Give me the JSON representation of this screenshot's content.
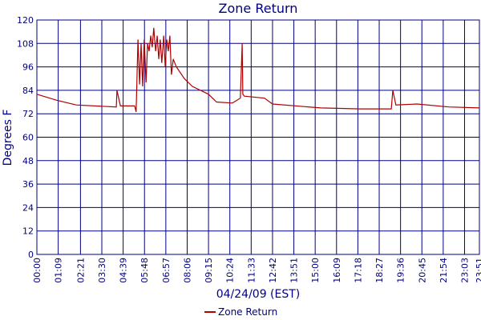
{
  "chart_data": {
    "type": "line",
    "title": "Zone Return",
    "x_label": "04/24/09 (EST)",
    "y_label": "Degrees F",
    "xlim": [
      0,
      1431
    ],
    "ylim": [
      0,
      120
    ],
    "yticks": [
      0,
      12,
      24,
      36,
      48,
      60,
      72,
      84,
      96,
      108,
      120
    ],
    "xticks": [
      {
        "value": 0,
        "label": "00:00"
      },
      {
        "value": 69,
        "label": "01:09"
      },
      {
        "value": 141,
        "label": "02:21"
      },
      {
        "value": 210,
        "label": "03:30"
      },
      {
        "value": 279,
        "label": "04:39"
      },
      {
        "value": 348,
        "label": "05:48"
      },
      {
        "value": 417,
        "label": "06:57"
      },
      {
        "value": 486,
        "label": "08:06"
      },
      {
        "value": 555,
        "label": "09:15"
      },
      {
        "value": 624,
        "label": "10:24"
      },
      {
        "value": 693,
        "label": "11:33"
      },
      {
        "value": 762,
        "label": "12:42"
      },
      {
        "value": 831,
        "label": "13:51"
      },
      {
        "value": 900,
        "label": "15:00"
      },
      {
        "value": 969,
        "label": "16:09"
      },
      {
        "value": 1038,
        "label": "17:18"
      },
      {
        "value": 1107,
        "label": "18:27"
      },
      {
        "value": 1176,
        "label": "19:36"
      },
      {
        "value": 1245,
        "label": "20:45"
      },
      {
        "value": 1314,
        "label": "21:54"
      },
      {
        "value": 1383,
        "label": "23:03"
      },
      {
        "value": 1431,
        "label": "23:51"
      }
    ],
    "grid": true,
    "x": [
      0,
      62,
      127,
      257,
      259,
      270,
      316,
      321,
      327,
      332,
      337,
      342,
      347,
      353,
      358,
      363,
      368,
      373,
      378,
      384,
      389,
      394,
      399,
      404,
      410,
      415,
      420,
      425,
      430,
      435,
      441,
      446,
      451,
      477,
      503,
      555,
      581,
      632,
      658,
      664,
      666,
      671,
      736,
      762,
      918,
      1047,
      1146,
      1151,
      1161,
      1229,
      1332,
      1431
    ],
    "series": [
      {
        "name": "Zone Return",
        "color": "#b00000",
        "values": [
          82,
          79,
          76.5,
          75.5,
          84,
          76,
          76,
          73,
          110,
          87,
          108,
          86,
          110,
          88,
          108,
          104,
          112,
          106,
          116,
          104,
          112,
          100,
          110,
          98,
          112,
          96,
          110,
          104,
          112,
          92,
          100,
          98,
          96,
          90,
          86,
          82,
          78,
          77.5,
          80,
          108,
          82,
          81,
          80,
          77,
          75,
          74.5,
          74.5,
          84,
          76.5,
          77,
          75.5,
          75
        ]
      }
    ]
  }
}
